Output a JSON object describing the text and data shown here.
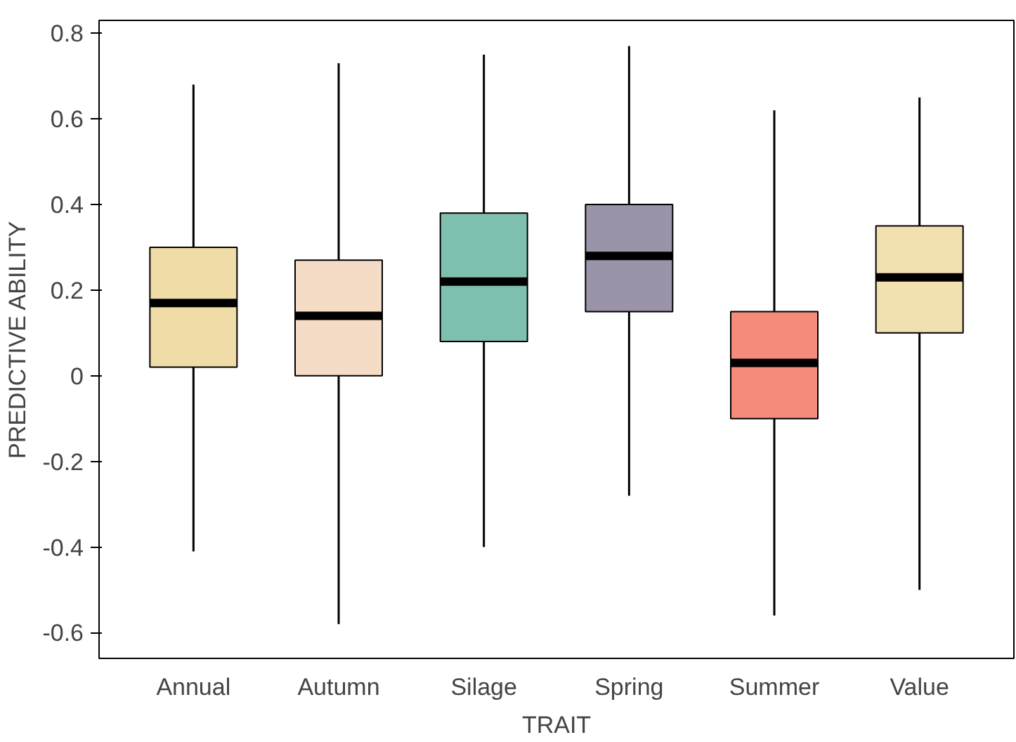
{
  "chart_data": {
    "type": "box",
    "xlabel": "TRAIT",
    "ylabel": "PREDICTIVE ABILITY",
    "categories": [
      "Annual",
      "Autumn",
      "Silage",
      "Spring",
      "Summer",
      "Value"
    ],
    "colors": [
      "#f0dca6",
      "#f5dcc6",
      "#7fbfaf",
      "#9b93a8",
      "#f58b7a",
      "#f2e0b0"
    ],
    "boxes": [
      {
        "low": -0.41,
        "q1": 0.02,
        "median": 0.17,
        "q3": 0.3,
        "high": 0.68
      },
      {
        "low": -0.58,
        "q1": 0.0,
        "median": 0.14,
        "q3": 0.27,
        "high": 0.73
      },
      {
        "low": -0.4,
        "q1": 0.08,
        "median": 0.22,
        "q3": 0.38,
        "high": 0.75
      },
      {
        "low": -0.28,
        "q1": 0.15,
        "median": 0.28,
        "q3": 0.4,
        "high": 0.77
      },
      {
        "low": -0.56,
        "q1": -0.1,
        "median": 0.03,
        "q3": 0.15,
        "high": 0.62
      },
      {
        "low": -0.5,
        "q1": 0.1,
        "median": 0.23,
        "q3": 0.35,
        "high": 0.65
      }
    ],
    "ylim": [
      -0.66,
      0.83
    ],
    "yticks": [
      -0.6,
      -0.4,
      -0.2,
      0,
      0.2,
      0.4,
      0.6,
      0.8
    ]
  }
}
